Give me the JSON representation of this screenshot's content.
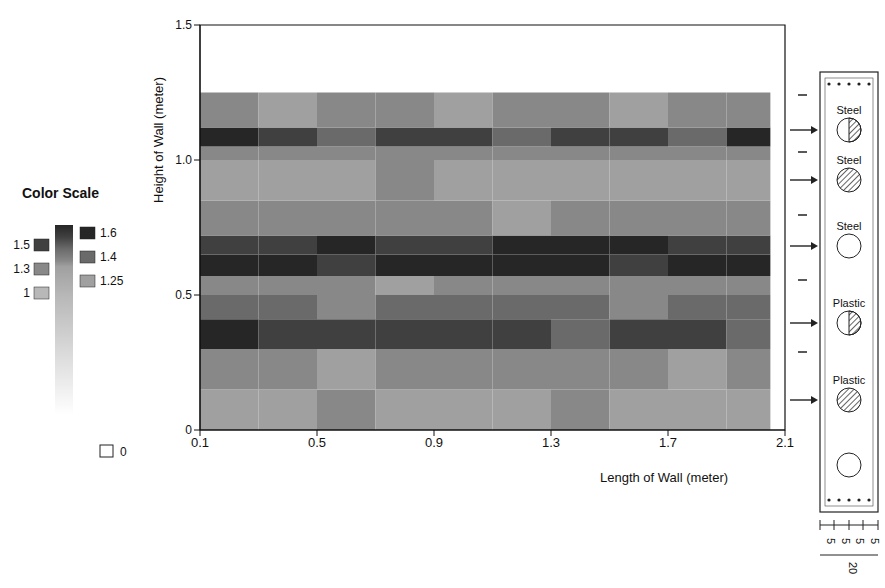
{
  "chart_data": {
    "type": "heatmap",
    "x_label": "Length of Wall (meter)",
    "y_label": "Height of Wall (meter)",
    "xlim": [
      0.1,
      2.1
    ],
    "xticks": [
      0.1,
      0.5,
      0.9,
      1.3,
      1.7,
      2.1
    ],
    "ylim": [
      0,
      1.5
    ],
    "yticks": [
      0,
      0.5,
      {
        "value": 1,
        "label": "1.0"
      },
      1.5
    ],
    "x_edges": [
      0.1,
      0.3,
      0.5,
      0.7,
      0.9,
      1.1,
      1.3,
      1.5,
      1.7,
      1.9,
      2.05
    ],
    "y_edges": [
      0,
      0.15,
      0.3,
      0.41,
      0.5,
      0.57,
      0.65,
      0.72,
      0.85,
      1.0,
      1.05,
      1.12,
      1.25
    ],
    "cells": [
      [
        1.25,
        1.25,
        1.3,
        1.25,
        1.25,
        1.25,
        1.3,
        1.25,
        1.25,
        1.25
      ],
      [
        1.3,
        1.3,
        1.25,
        1.3,
        1.3,
        1.3,
        1.3,
        1.3,
        1.25,
        1.3
      ],
      [
        1.6,
        1.5,
        1.5,
        1.5,
        1.5,
        1.5,
        1.4,
        1.5,
        1.5,
        1.4
      ],
      [
        1.4,
        1.4,
        1.3,
        1.4,
        1.4,
        1.4,
        1.4,
        1.3,
        1.4,
        1.4
      ],
      [
        1.3,
        1.3,
        1.3,
        1.25,
        1.3,
        1.3,
        1.3,
        1.3,
        1.3,
        1.3
      ],
      [
        1.6,
        1.6,
        1.5,
        1.6,
        1.6,
        1.6,
        1.6,
        1.5,
        1.6,
        1.6
      ],
      [
        1.5,
        1.5,
        1.6,
        1.5,
        1.5,
        1.6,
        1.6,
        1.6,
        1.5,
        1.5
      ],
      [
        1.3,
        1.3,
        1.3,
        1.3,
        1.3,
        1.25,
        1.3,
        1.3,
        1.3,
        1.3
      ],
      [
        1.25,
        1.25,
        1.25,
        1.3,
        1.25,
        1.25,
        1.25,
        1.25,
        1.25,
        1.25
      ],
      [
        1.3,
        1.3,
        1.3,
        1.3,
        1.3,
        1.3,
        1.3,
        1.3,
        1.3,
        1.3
      ],
      [
        1.6,
        1.5,
        1.4,
        1.5,
        1.5,
        1.4,
        1.5,
        1.5,
        1.4,
        1.6
      ],
      [
        1.3,
        1.25,
        1.3,
        1.3,
        1.25,
        1.3,
        1.3,
        1.25,
        1.3,
        1.3
      ]
    ],
    "color_scale": {
      "title": "Color Scale",
      "range": [
        0,
        1.6
      ],
      "ticks": [
        0,
        1,
        1.25,
        1.3,
        1.4,
        1.5,
        1.6
      ],
      "colors": [
        "#ffffff",
        "#b8b8b8",
        "#a0a0a0",
        "#888888",
        "#6a6a6a",
        "#404040",
        "#262626"
      ]
    }
  },
  "wall_section": {
    "ducts": [
      {
        "label": "Steel"
      },
      {
        "label": "Steel"
      },
      {
        "label": "Steel"
      },
      {
        "label": "Plastic"
      },
      {
        "label": "Plastic"
      },
      {
        "label": null
      }
    ],
    "dimensions": [
      "5",
      "5",
      "5",
      "5"
    ],
    "width": "20"
  }
}
